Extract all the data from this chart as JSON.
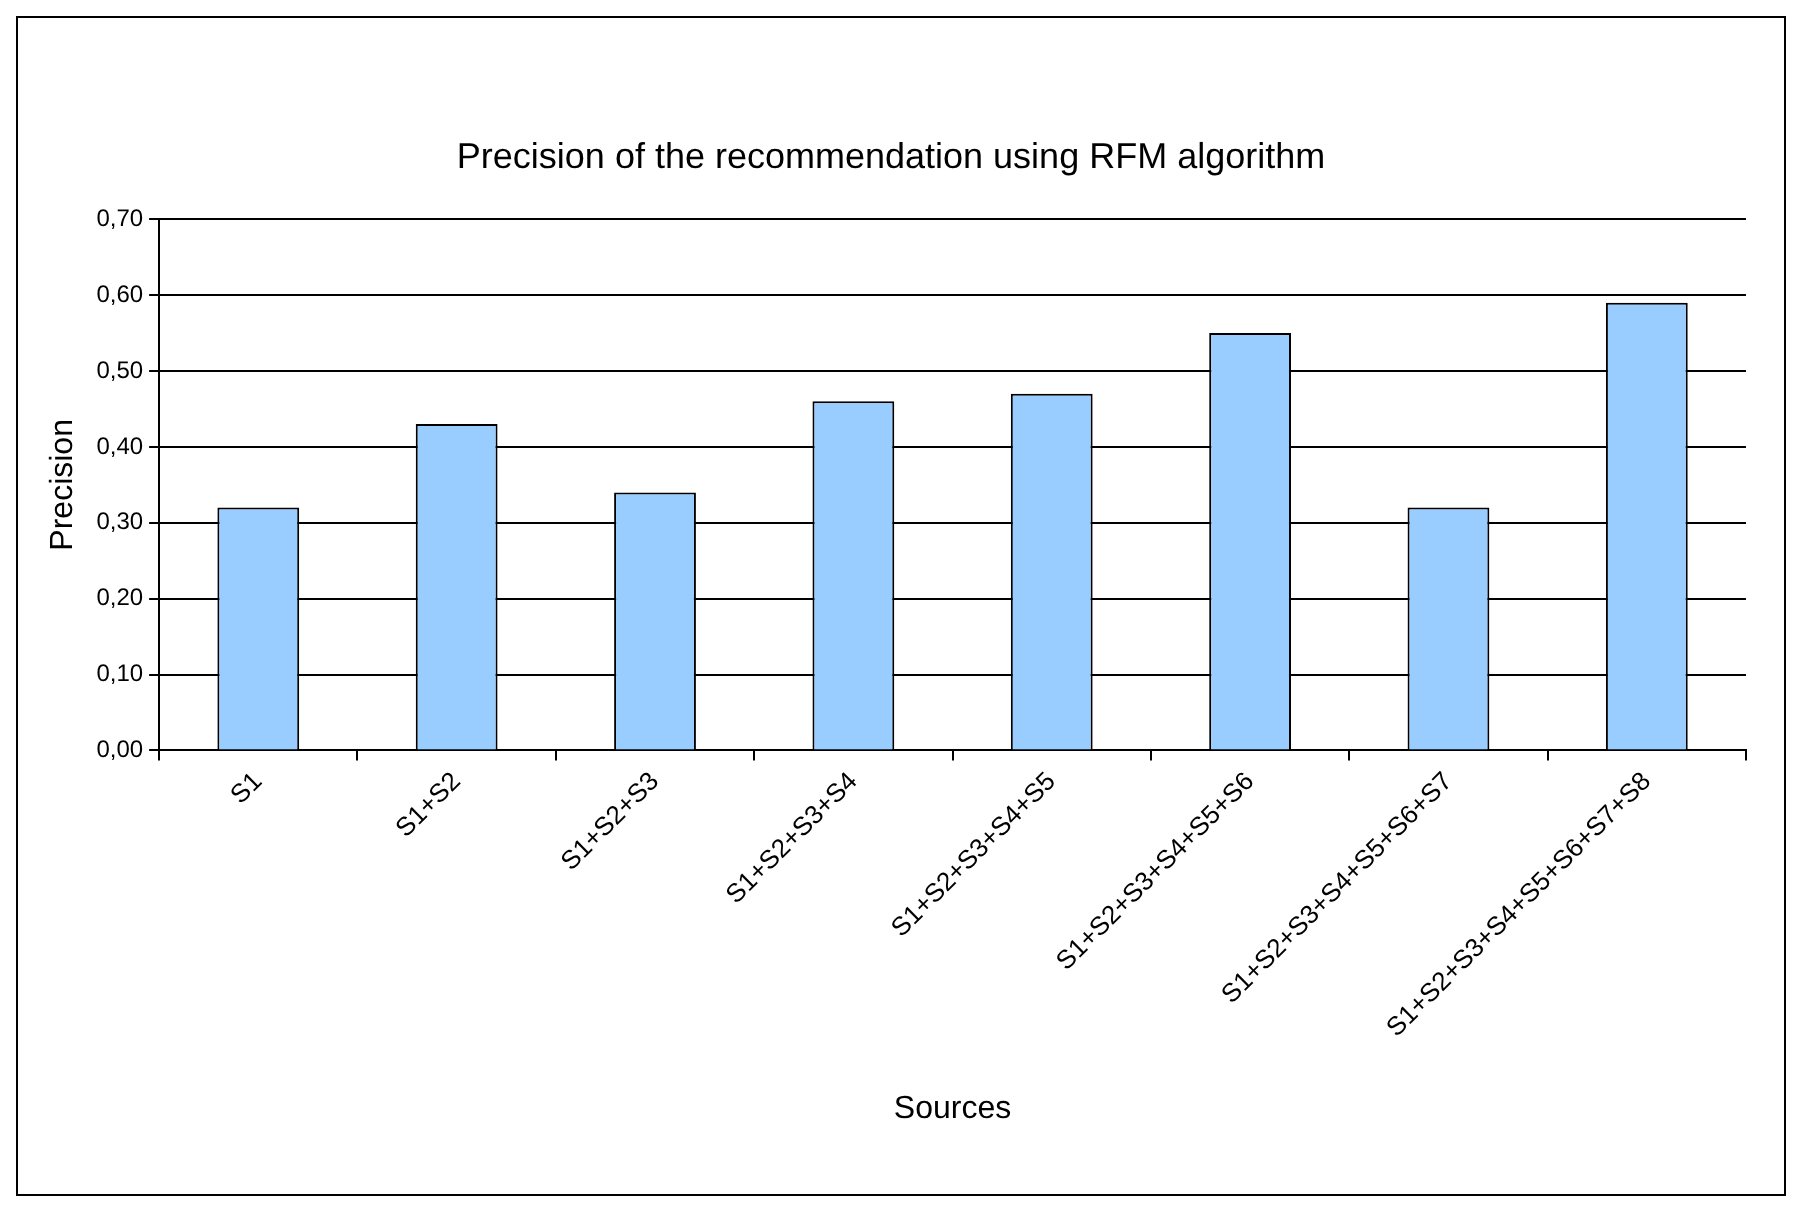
{
  "chart_data": {
    "type": "bar",
    "title": "Precision of the recommendation using RFM algorithm",
    "xlabel": "Sources",
    "ylabel": "Precision",
    "categories": [
      "S1",
      "S1+S2",
      "S1+S2+S3",
      "S1+S2+S3+S4",
      "S1+S2+S3+S4+S5",
      "S1+S2+S3+S4+S5+S6",
      "S1+S2+S3+S4+S5+S6+S7",
      "S1+S2+S3+S4+S5+S6+S7+S8"
    ],
    "values": [
      0.32,
      0.43,
      0.34,
      0.46,
      0.47,
      0.55,
      0.32,
      0.59
    ],
    "color": "#99ccff",
    "ylim": [
      0,
      0.7
    ],
    "yticks": [
      {
        "value": 0,
        "label": "0,00"
      },
      {
        "value": 0.1,
        "label": "0,10"
      },
      {
        "value": 0.2,
        "label": "0,20"
      },
      {
        "value": 0.3,
        "label": "0,30"
      },
      {
        "value": 0.4,
        "label": "0,40"
      },
      {
        "value": 0.5,
        "label": "0,50"
      },
      {
        "value": 0.6,
        "label": "0,60"
      },
      {
        "value": 0.7,
        "label": "0,70"
      }
    ],
    "grid": "y",
    "legend": false
  }
}
